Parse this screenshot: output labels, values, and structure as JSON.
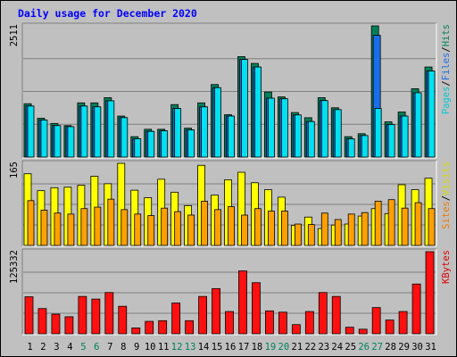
{
  "chart_data": {
    "type": "bar",
    "title": "Daily usage for December 2020",
    "categories": [
      "1",
      "2",
      "3",
      "4",
      "5",
      "6",
      "7",
      "8",
      "9",
      "10",
      "11",
      "12",
      "13",
      "14",
      "15",
      "16",
      "17",
      "18",
      "19",
      "20",
      "21",
      "22",
      "23",
      "24",
      "25",
      "26",
      "27",
      "28",
      "29",
      "30",
      "31"
    ],
    "weekend_days": [
      "5",
      "6",
      "12",
      "13",
      "19",
      "20",
      "26",
      "27"
    ],
    "panels": [
      {
        "id": "top",
        "ymax_label": "2511",
        "ylim": [
          0,
          2511
        ],
        "axis_labels": [
          {
            "text": "Pages",
            "color": "#00c8d8"
          },
          {
            "text": "/",
            "color": "#000000"
          },
          {
            "text": "Files",
            "color": "#1a6ee8"
          },
          {
            "text": "/",
            "color": "#000000"
          },
          {
            "text": "Hits",
            "color": "#00805a"
          }
        ],
        "series": [
          {
            "name": "Hits",
            "color": "#00805a",
            "values": [
              1021,
              743,
              644,
              602,
              1038,
              1038,
              1137,
              785,
              391,
              532,
              532,
              1004,
              553,
              1038,
              1388,
              811,
              1922,
              1792,
              1245,
              1152,
              853,
              753,
              1137,
              944,
              391,
              447,
              2511,
              674,
              863,
              1308,
              1724
            ]
          },
          {
            "name": "Files",
            "color": "#1a6ee8",
            "values": [
              977,
              709,
              602,
              582,
              977,
              961,
              1077,
              755,
              351,
              492,
              502,
              930,
              520,
              961,
              1328,
              785,
              1868,
              1724,
              1128,
              1116,
              806,
              680,
              1081,
              908,
              348,
              412,
              2330,
              624,
              785,
              1231,
              1648
            ]
          },
          {
            "name": "Pages",
            "color": "#00e0f0",
            "values": [
              977,
              709,
              602,
              582,
              977,
              961,
              1077,
              755,
              351,
              492,
              502,
              930,
              520,
              961,
              1328,
              785,
              1868,
              1724,
              1128,
              1116,
              806,
              680,
              1081,
              908,
              348,
              412,
              930,
              624,
              785,
              1231,
              1648
            ]
          }
        ]
      },
      {
        "id": "middle",
        "ymax_label": "165",
        "ylim": [
          0,
          165
        ],
        "axis_labels": [
          {
            "text": "Sites",
            "color": "#f07800"
          },
          {
            "text": "/",
            "color": "#000000"
          },
          {
            "text": "Visits",
            "color": "#d8d800"
          }
        ],
        "series": [
          {
            "name": "Visits",
            "color": "#ffff00",
            "values": [
              144,
              110,
              116,
              117,
              121,
              139,
              124,
              165,
              111,
              96,
              133,
              107,
              80,
              161,
              101,
              132,
              147,
              126,
              112,
              97,
              40,
              57,
              34,
              41,
              43,
              59,
              74,
              64,
              122,
              112,
              135
            ]
          },
          {
            "name": "Sites",
            "color": "#ffa000",
            "values": [
              90,
              71,
              65,
              63,
              74,
              77,
              93,
              72,
              63,
              60,
              75,
              68,
              61,
              89,
              72,
              78,
              61,
              74,
              69,
              69,
              43,
              42,
              65,
              52,
              63,
              66,
              89,
              92,
              75,
              86,
              74
            ]
          }
        ]
      },
      {
        "id": "bottom",
        "ymax_label": "125332",
        "ylim": [
          0,
          125332
        ],
        "axis_labels": [
          {
            "text": "KBytes",
            "color": "#e00000"
          }
        ],
        "series": [
          {
            "name": "KBytes",
            "color": "#ff1010",
            "values": [
              56500,
              38500,
              30000,
              26000,
              57000,
              53000,
              63000,
              42000,
              9000,
              19000,
              20000,
              47000,
              20000,
              57000,
              69000,
              34000,
              96000,
              78000,
              35000,
              33000,
              14000,
              34000,
              63000,
              57000,
              10000,
              7000,
              40000,
              21000,
              34000,
              76000,
              125332
            ]
          }
        ]
      }
    ]
  }
}
